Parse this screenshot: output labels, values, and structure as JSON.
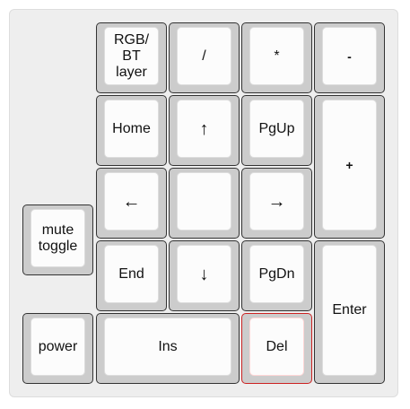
{
  "keys": {
    "rgb_bt_layer": "RGB/\nBT\nlayer",
    "slash": "/",
    "asterisk": "*",
    "minus": "-",
    "home": "Home",
    "up": "↑",
    "pgup": "PgUp",
    "plus": "+",
    "left": "←",
    "blank": "",
    "right": "→",
    "mute_toggle": "mute\ntoggle",
    "end": "End",
    "down": "↓",
    "pgdn": "PgDn",
    "enter": "Enter",
    "power": "power",
    "ins": "Ins",
    "del": "Del"
  },
  "selected_key": "Del",
  "colors": {
    "board_background": "#eeeeee",
    "key_border": "#333333",
    "key_sides": "#cccccc",
    "keycap_face": "#fcfcfc",
    "selected_border": "#cc2222"
  }
}
